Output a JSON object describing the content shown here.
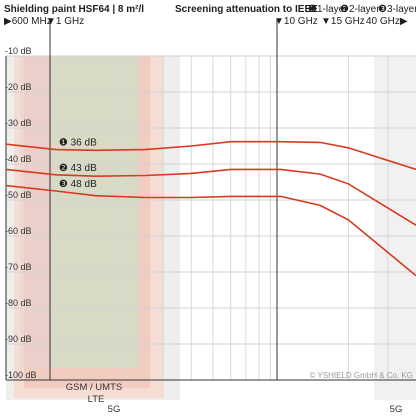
{
  "header": {
    "title": "Shielding paint HSF64 | 8 m²/l",
    "subtitle": "Screening attenuation to IEEE",
    "legend": [
      {
        "badge": "❶",
        "text": "1-layer"
      },
      {
        "badge": "❷",
        "text": "2-layer"
      },
      {
        "badge": "❸",
        "text": "3-layer"
      }
    ]
  },
  "freq_markers": [
    {
      "label": "▶600 MHz"
    },
    {
      "label": "▼1 GHz"
    },
    {
      "label": "▼10 GHz"
    },
    {
      "label": "▼15 GHz"
    },
    {
      "label": "40 GHz▶"
    }
  ],
  "bands": {
    "gsm_umts": "GSM / UMTS",
    "lte": "LTE",
    "five_g_left": "5G",
    "five_g_right": "5G"
  },
  "copyright": "© YSHIELD GmbH & Co. KG",
  "chart_data": {
    "type": "line",
    "title": "Shielding paint HSF64 | 8 m²/l",
    "subtitle": "Screening attenuation to IEEE",
    "xlabel": "",
    "ylabel": "",
    "x_scale": "log",
    "xlim_ghz": [
      0.6,
      40
    ],
    "ylim": [
      -100,
      0
    ],
    "y_ticks": [
      -10,
      -20,
      -30,
      -40,
      -50,
      -60,
      -70,
      -80,
      -90,
      -100
    ],
    "y_tick_labels": [
      "-10 dB",
      "-20 dB",
      "-30 dB",
      "-40 dB",
      "-50 dB",
      "-60 dB",
      "-70 dB",
      "-80 dB",
      "-90 dB",
      "-100 dB"
    ],
    "grid": true,
    "series": [
      {
        "name": "1-layer",
        "badge": "❶",
        "label": "36 dB",
        "x_ghz": [
          0.6,
          1,
          1.5,
          2.5,
          4,
          6,
          10,
          15,
          20,
          40
        ],
        "y": [
          -34.5,
          -36,
          -36.2,
          -36,
          -35,
          -33.8,
          -33.8,
          -34,
          -35.5,
          -41.5
        ]
      },
      {
        "name": "2-layer",
        "badge": "❷",
        "label": "43 dB",
        "x_ghz": [
          0.6,
          1,
          1.5,
          2.5,
          4,
          6,
          10,
          15,
          20,
          40
        ],
        "y": [
          -41.5,
          -43,
          -43.4,
          -43.2,
          -42.6,
          -41.5,
          -41.5,
          -42.8,
          -45.5,
          -57
        ]
      },
      {
        "name": "3-layer",
        "badge": "❸",
        "label": "48 dB",
        "x_ghz": [
          0.6,
          1,
          1.5,
          2.5,
          4,
          6,
          10,
          15,
          20,
          40
        ],
        "y": [
          -46,
          -47.5,
          -48.8,
          -49.3,
          -49.3,
          -49,
          -49,
          -51.5,
          -55.5,
          -71
        ]
      }
    ],
    "line_color": "#d63a1f"
  }
}
